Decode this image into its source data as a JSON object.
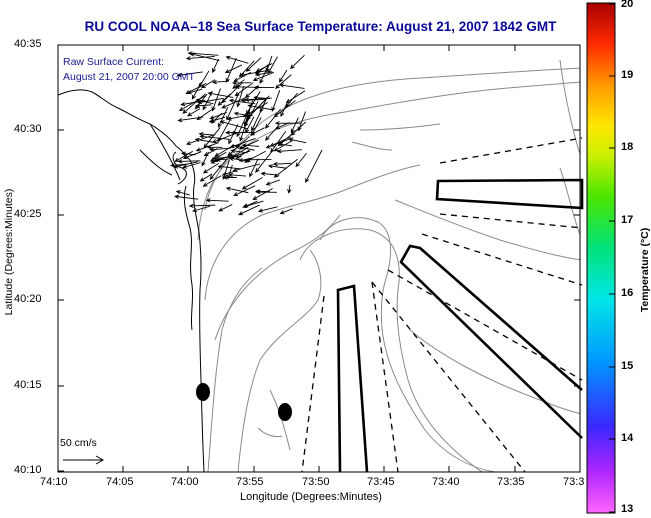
{
  "title": "RU COOL  NOAA–18  Sea Surface Temperature:  August 21, 2007 1842 GMT",
  "annotation": {
    "line1": "Raw Surface Current:",
    "line2": "August 21, 2007 20:00 GMT"
  },
  "axes": {
    "xlabel": "Longitude (Degrees:Minutes)",
    "ylabel": "Latitude (Degrees:Minutes)",
    "x_ticks": [
      "74:10",
      "74:05",
      "74:00",
      "73:55",
      "73:50",
      "73:45",
      "73:40",
      "73:35",
      "73:3"
    ],
    "y_ticks": [
      "40:35",
      "40:30",
      "40:25",
      "40:20",
      "40:15",
      "40:10"
    ]
  },
  "scale_vector": {
    "label": "50 cm/s"
  },
  "colorbar": {
    "title": "Temperature (°C)",
    "ticks": [
      "20",
      "19",
      "18",
      "17",
      "16",
      "15",
      "14",
      "13"
    ],
    "range": [
      13,
      20
    ]
  },
  "colors": {
    "title_text": "#0a0a9a",
    "coastline": "#000000",
    "bathymetry": "#8a8a8a"
  }
}
